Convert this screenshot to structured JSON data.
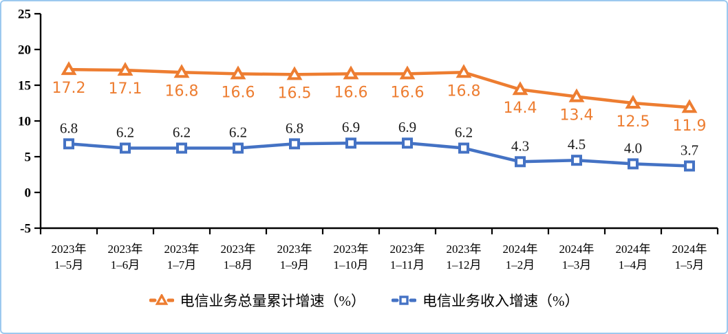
{
  "chart_data": {
    "type": "line",
    "title": "",
    "xlabel": "",
    "ylabel": "",
    "categories": [
      [
        "2023年",
        "1–5月"
      ],
      [
        "2023年",
        "1–6月"
      ],
      [
        "2023年",
        "1–7月"
      ],
      [
        "2023年",
        "1–8月"
      ],
      [
        "2023年",
        "1–9月"
      ],
      [
        "2023年",
        "1–10月"
      ],
      [
        "2023年",
        "1–11月"
      ],
      [
        "2023年",
        "1–12月"
      ],
      [
        "2024年",
        "1–2月"
      ],
      [
        "2024年",
        "1–3月"
      ],
      [
        "2024年",
        "1–4月"
      ],
      [
        "2024年",
        "1–5月"
      ]
    ],
    "series": [
      {
        "name": "电信业务总量累计增速（%）",
        "values": [
          17.2,
          17.1,
          16.8,
          16.6,
          16.5,
          16.6,
          16.6,
          16.8,
          14.4,
          13.4,
          12.5,
          11.9
        ],
        "color": "#ED7D31",
        "marker": "triangle",
        "label_color": "#ED7D31",
        "label_position": "below"
      },
      {
        "name": "电信业务收入增速（%）",
        "values": [
          6.8,
          6.2,
          6.2,
          6.2,
          6.8,
          6.9,
          6.9,
          6.2,
          4.3,
          4.5,
          4.0,
          3.7
        ],
        "color": "#4472C4",
        "marker": "square",
        "label_color": "#1a1a1a",
        "label_position": "above"
      }
    ],
    "ylim": [
      -5,
      25
    ],
    "yticks": [
      25,
      20,
      15,
      10,
      5,
      0,
      -5
    ],
    "grid": false,
    "legend_position": "bottom",
    "axis_color": "#000000",
    "marker_fill": "#ffffff",
    "frame_border_color": "#9cc9ef"
  }
}
